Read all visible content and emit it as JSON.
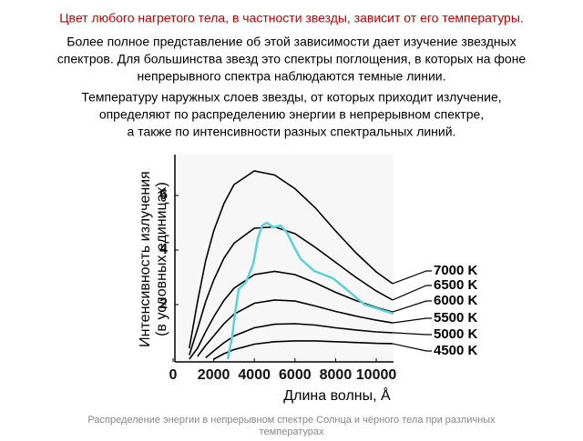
{
  "header": {
    "title": "Цвет любого нагретого тела, в частности звезды, зависит от его температуры."
  },
  "paragraphs": [
    [
      "Более полное представление об этой зависимости дает изучение звездных",
      "спектров. Для большинства звезд это спектры поглощения, в которых на фоне",
      "непрерывного спектра наблюдаются темные линии."
    ],
    [
      "Температуру наружных слоев звезды, от которых приходит излучение,",
      "определяют по распределению энергии в непрерывном спектре,",
      "а также по интенсивности разных спектральных линий."
    ]
  ],
  "chart_data": {
    "type": "line",
    "xlabel": "Длина волны, Å",
    "ylabel": [
      "Интенсивность излучения",
      "(в условных единицах)"
    ],
    "x": [
      800,
      1200,
      1600,
      2000,
      2500,
      3000,
      4000,
      5000,
      6000,
      7000,
      8000,
      9000,
      10000,
      10800
    ],
    "xlim": [
      0,
      10850
    ],
    "ylim": [
      0,
      7.5
    ],
    "xticks": [
      0,
      2000,
      4000,
      6000,
      8000,
      10000
    ],
    "yticks": [
      2,
      4,
      6
    ],
    "series": [
      {
        "name": "7000 K",
        "color": "#000000",
        "values": [
          0.4,
          2.1,
          3.6,
          4.7,
          5.7,
          6.4,
          6.9,
          6.75,
          6.25,
          5.55,
          4.7,
          3.9,
          3.2,
          2.77
        ]
      },
      {
        "name": "6500 K",
        "color": "#000000",
        "values": [
          0.15,
          1.1,
          2.1,
          2.9,
          3.7,
          4.25,
          4.8,
          4.85,
          4.6,
          4.1,
          3.55,
          3.0,
          2.5,
          2.17
        ]
      },
      {
        "name": "6000 K",
        "color": "#000000",
        "values": [
          0,
          0.4,
          1.0,
          1.55,
          2.15,
          2.6,
          3.1,
          3.22,
          3.1,
          2.8,
          2.45,
          2.15,
          1.9,
          1.73
        ]
      },
      {
        "name": "5500 K",
        "color": "#000000",
        "values": [
          null,
          0.1,
          0.5,
          0.85,
          1.3,
          1.65,
          2.05,
          2.17,
          2.13,
          1.95,
          1.75,
          1.58,
          1.43,
          1.33
        ]
      },
      {
        "name": "5000 K",
        "color": "#000000",
        "values": [
          null,
          null,
          0.05,
          0.3,
          0.6,
          0.85,
          1.15,
          1.28,
          1.3,
          1.25,
          1.15,
          1.07,
          1.0,
          0.97
        ]
      },
      {
        "name": "4500 K",
        "color": "#000000",
        "values": [
          null,
          null,
          null,
          0,
          0.2,
          0.35,
          0.55,
          0.64,
          0.67,
          0.67,
          0.64,
          0.61,
          0.58,
          0.57
        ]
      },
      {
        "color": "#5fd0d6",
        "x": [
          2690,
          2910,
          3050,
          3230,
          3590,
          3950,
          4170,
          4390,
          4620,
          4930,
          5290,
          5610,
          5920,
          6280,
          6950,
          7850,
          8520,
          9420,
          10850
        ],
        "values": [
          0,
          0.83,
          1.67,
          2.57,
          2.83,
          3.5,
          4.43,
          4.9,
          5.0,
          4.83,
          4.9,
          4.63,
          4.17,
          3.67,
          3.23,
          2.97,
          2.57,
          2.0,
          1.67
        ]
      }
    ]
  },
  "caption": [
    "Распределение энергии в непрерывном спектре Солнца и чёрного тела при различных",
    "температурах"
  ]
}
